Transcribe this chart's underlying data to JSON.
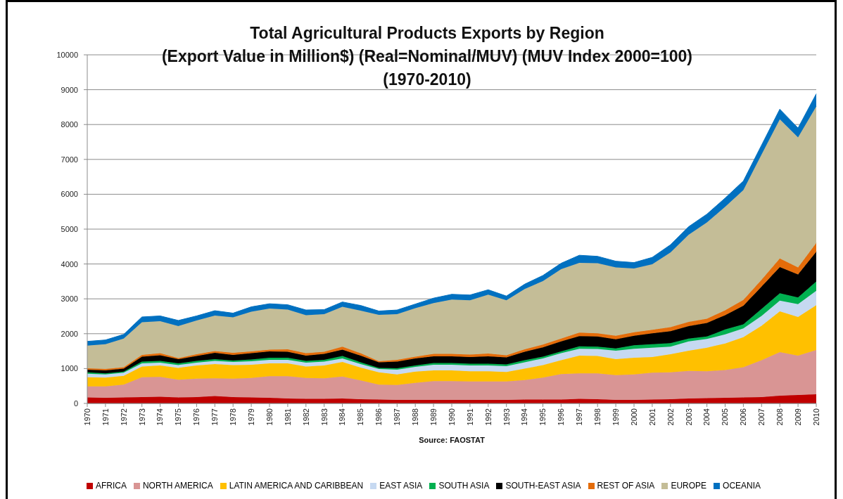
{
  "chart_data": {
    "type": "area",
    "stacked": true,
    "title": "Total Agricultural Products Exports by Region\n(Export Value in Million$) (Real=Nominal/MUV) (MUV Index 2000=100)\n(1970-2010)",
    "annotations": [
      "Source: FAOSTAT"
    ],
    "categories": [
      "1970",
      "1971",
      "1972",
      "1973",
      "1974",
      "1975",
      "1976",
      "1977",
      "1978",
      "1979",
      "1980",
      "1981",
      "1982",
      "1983",
      "1984",
      "1985",
      "1986",
      "1987",
      "1988",
      "1989",
      "1990",
      "1991",
      "1992",
      "1993",
      "1994",
      "1995",
      "1996",
      "1997",
      "1998",
      "1999",
      "2000",
      "2001",
      "2002",
      "2003",
      "2004",
      "2005",
      "2006",
      "2007",
      "2008",
      "2009",
      "2010"
    ],
    "series": [
      {
        "name": "AFRICA",
        "color": "#c00000",
        "values": [
          170,
          160,
          170,
          180,
          190,
          170,
          180,
          210,
          180,
          170,
          160,
          140,
          130,
          130,
          140,
          120,
          110,
          100,
          100,
          100,
          100,
          100,
          100,
          100,
          110,
          110,
          110,
          130,
          120,
          100,
          100,
          110,
          120,
          140,
          150,
          160,
          170,
          180,
          220,
          240,
          260
        ]
      },
      {
        "name": "NORTH AMERICA",
        "color": "#d99594",
        "values": [
          320,
          330,
          370,
          570,
          570,
          510,
          530,
          510,
          530,
          560,
          620,
          640,
          600,
          590,
          630,
          540,
          430,
          430,
          490,
          540,
          540,
          530,
          530,
          530,
          560,
          630,
          730,
          730,
          740,
          710,
          730,
          770,
          770,
          790,
          770,
          800,
          870,
          1060,
          1250,
          1130,
          1270
        ]
      },
      {
        "name": "LATIN AMERICA AND CARIBBEAN",
        "color": "#ffc000",
        "values": [
          260,
          250,
          250,
          310,
          330,
          340,
          380,
          410,
          390,
          380,
          370,
          370,
          330,
          370,
          420,
          370,
          350,
          300,
          320,
          310,
          310,
          290,
          290,
          270,
          330,
          360,
          400,
          510,
          500,
          460,
          480,
          450,
          520,
          580,
          680,
          760,
          860,
          990,
          1170,
          1110,
          1290
        ]
      },
      {
        "name": "EAST ASIA",
        "color": "#c6d9f1",
        "values": [
          100,
          90,
          90,
          90,
          80,
          80,
          80,
          90,
          90,
          100,
          100,
          100,
          110,
          110,
          100,
          100,
          100,
          140,
          140,
          160,
          160,
          170,
          170,
          170,
          180,
          190,
          200,
          200,
          200,
          240,
          260,
          270,
          220,
          270,
          250,
          260,
          250,
          280,
          310,
          370,
          410
        ]
      },
      {
        "name": "SOUTH ASIA",
        "color": "#00b050",
        "values": [
          40,
          30,
          30,
          50,
          50,
          50,
          50,
          50,
          40,
          50,
          60,
          60,
          50,
          50,
          70,
          50,
          30,
          40,
          40,
          50,
          50,
          50,
          50,
          50,
          60,
          50,
          50,
          70,
          70,
          70,
          100,
          100,
          100,
          80,
          70,
          140,
          120,
          200,
          210,
          190,
          270
        ]
      },
      {
        "name": "SOUTH-EAST ASIA",
        "color": "#000000",
        "values": [
          80,
          90,
          90,
          140,
          160,
          120,
          140,
          180,
          160,
          180,
          180,
          170,
          150,
          170,
          180,
          190,
          160,
          190,
          200,
          190,
          190,
          190,
          210,
          200,
          240,
          270,
          290,
          290,
          290,
          260,
          270,
          310,
          340,
          360,
          390,
          410,
          530,
          640,
          750,
          660,
          850
        ]
      },
      {
        "name": "REST OF ASIA",
        "color": "#e46c0a",
        "values": [
          40,
          40,
          40,
          50,
          60,
          30,
          50,
          50,
          60,
          50,
          50,
          70,
          70,
          60,
          90,
          70,
          30,
          50,
          50,
          70,
          70,
          70,
          80,
          60,
          70,
          80,
          80,
          100,
          90,
          100,
          100,
          100,
          120,
          120,
          120,
          140,
          170,
          200,
          250,
          200,
          250
        ]
      },
      {
        "name": "EUROPE",
        "color": "#c4bd97",
        "values": [
          650,
          710,
          820,
          940,
          920,
          920,
          970,
          1020,
          1020,
          1140,
          1180,
          1140,
          1090,
          1080,
          1140,
          1220,
          1330,
          1310,
          1390,
          1460,
          1560,
          1560,
          1690,
          1580,
          1730,
          1820,
          1990,
          2000,
          2010,
          1960,
          1830,
          1880,
          2140,
          2500,
          2760,
          2970,
          3150,
          3590,
          3990,
          3730,
          3920
        ]
      },
      {
        "name": "OCEANIA",
        "color": "#0070c0",
        "values": [
          120,
          120,
          120,
          150,
          150,
          160,
          130,
          140,
          120,
          140,
          140,
          140,
          150,
          130,
          140,
          150,
          110,
          120,
          120,
          140,
          150,
          150,
          140,
          120,
          140,
          160,
          170,
          220,
          200,
          180,
          170,
          200,
          220,
          230,
          240,
          250,
          260,
          270,
          290,
          270,
          360
        ]
      }
    ],
    "ylim": [
      0,
      10000
    ],
    "yticks": [
      0,
      1000,
      2000,
      3000,
      4000,
      5000,
      6000,
      7000,
      8000,
      9000,
      10000
    ],
    "grid": "y",
    "legend": "bottom"
  }
}
